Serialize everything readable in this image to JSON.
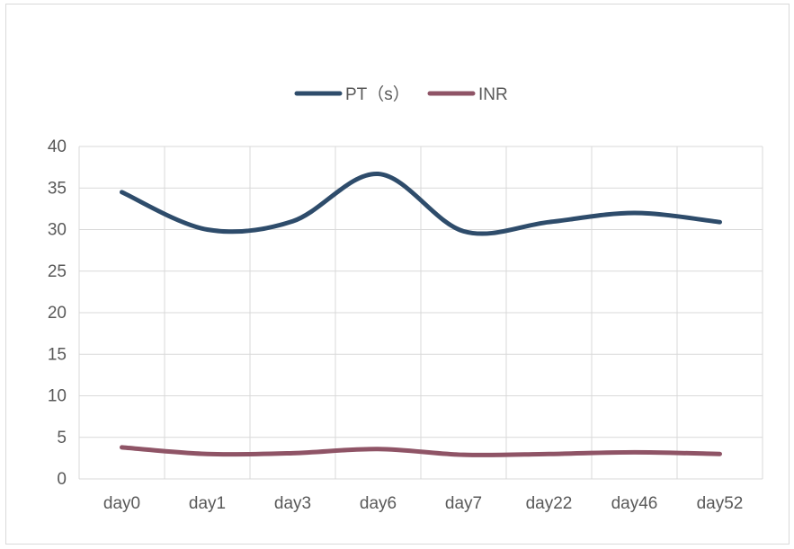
{
  "chart_data": {
    "type": "line",
    "title": "",
    "xlabel": "",
    "ylabel": "",
    "categories": [
      "day0",
      "day1",
      "day3",
      "day6",
      "day7",
      "day22",
      "day46",
      "day52"
    ],
    "ylim": [
      0,
      40
    ],
    "yticks": [
      0,
      5,
      10,
      15,
      20,
      25,
      30,
      35,
      40
    ],
    "smooth": true,
    "grid": true,
    "legend_position": "top",
    "series": [
      {
        "name": "PT（s）",
        "color": "#2e4c6b",
        "values": [
          34.5,
          30.0,
          31.0,
          36.7,
          29.8,
          30.9,
          32.0,
          30.9
        ]
      },
      {
        "name": "INR",
        "color": "#8f5466",
        "values": [
          3.8,
          3.0,
          3.1,
          3.6,
          2.9,
          3.0,
          3.2,
          3.0
        ]
      }
    ]
  }
}
